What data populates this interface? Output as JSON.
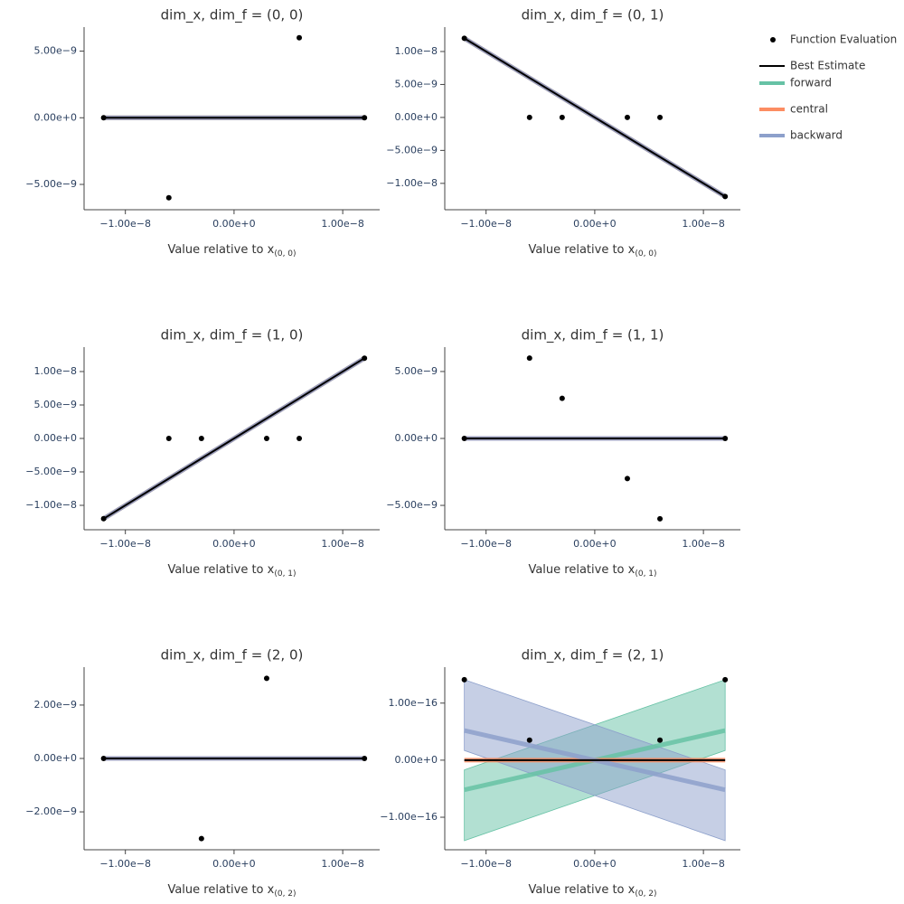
{
  "legend": [
    {
      "name": "Function Evaluation",
      "color": "#000000"
    },
    {
      "name": "Best Estimate",
      "color": "#000000"
    },
    {
      "name": "forward",
      "color": "#66c2a5"
    },
    {
      "name": "central",
      "color": "#fc8d62"
    },
    {
      "name": "backward",
      "color": "#8da0cb"
    }
  ],
  "chart_data": [
    {
      "type": "line",
      "title": "dim_x, dim_f = (0, 0)",
      "x_label": "Value relative to x",
      "x_label_subscript": "(0, 0)",
      "xlim": [
        -1.38e-08,
        1.34e-08
      ],
      "xticks": [
        {
          "value": -1e-08,
          "label": "−1.00e−8"
        },
        {
          "value": 0,
          "label": "0.00e+0"
        },
        {
          "value": 1e-08,
          "label": "1.00e−8"
        }
      ],
      "ylim": [
        -6.9e-09,
        6.8e-09
      ],
      "yticks": [
        {
          "value": 5e-09,
          "label": "5.00e−9"
        },
        {
          "value": 0,
          "label": "0.00e+0"
        },
        {
          "value": -5e-09,
          "label": "−5.00e−9"
        }
      ],
      "series": [
        {
          "x": [
            -1.2e-08,
            -6e-09,
            6e-09,
            1.2e-08
          ],
          "values": [
            0,
            -6e-09,
            6e-09,
            0
          ]
        },
        {
          "x": [
            -1.2e-08,
            1.2e-08
          ],
          "values": [
            0,
            0
          ]
        },
        {
          "x": [
            -1.2e-08,
            1.2e-08
          ],
          "values": [
            0,
            0
          ]
        },
        {
          "x": [
            -1.2e-08,
            1.2e-08
          ],
          "values": [
            0,
            0
          ]
        },
        {
          "x": [
            -1.2e-08,
            1.2e-08
          ],
          "values": [
            0,
            0
          ]
        }
      ]
    },
    {
      "type": "line",
      "title": "dim_x, dim_f = (0, 1)",
      "x_label": "Value relative to x",
      "x_label_subscript": "(0, 0)",
      "xlim": [
        -1.38e-08,
        1.34e-08
      ],
      "xticks": [
        {
          "value": -1e-08,
          "label": "−1.00e−8"
        },
        {
          "value": 0,
          "label": "0.00e+0"
        },
        {
          "value": 1e-08,
          "label": "1.00e−8"
        }
      ],
      "ylim": [
        -1.4e-08,
        1.37e-08
      ],
      "yticks": [
        {
          "value": 1e-08,
          "label": "1.00e−8"
        },
        {
          "value": 5e-09,
          "label": "5.00e−9"
        },
        {
          "value": 0,
          "label": "0.00e+0"
        },
        {
          "value": -5e-09,
          "label": "−5.00e−9"
        },
        {
          "value": -1e-08,
          "label": "−1.00e−8"
        }
      ],
      "series": [
        {
          "x": [
            -1.2e-08,
            -6e-09,
            -3e-09,
            3e-09,
            6e-09,
            1.2e-08
          ],
          "values": [
            1.2e-08,
            0,
            0,
            0,
            0,
            -1.2e-08
          ]
        },
        {
          "x": [
            -1.2e-08,
            1.2e-08
          ],
          "values": [
            1.2e-08,
            -1.2e-08
          ]
        },
        {
          "x": [
            -1.2e-08,
            1.2e-08
          ],
          "values": [
            1.2e-08,
            -1.2e-08
          ]
        },
        {
          "x": [
            -1.2e-08,
            1.2e-08
          ],
          "values": [
            1.2e-08,
            -1.2e-08
          ]
        },
        {
          "x": [
            -1.2e-08,
            1.2e-08
          ],
          "values": [
            1.2e-08,
            -1.2e-08
          ]
        }
      ]
    },
    {
      "type": "line",
      "title": "dim_x, dim_f = (1, 0)",
      "x_label": "Value relative to x",
      "x_label_subscript": "(0, 1)",
      "xlim": [
        -1.38e-08,
        1.34e-08
      ],
      "xticks": [
        {
          "value": -1e-08,
          "label": "−1.00e−8"
        },
        {
          "value": 0,
          "label": "0.00e+0"
        },
        {
          "value": 1e-08,
          "label": "1.00e−8"
        }
      ],
      "ylim": [
        -1.365e-08,
        1.365e-08
      ],
      "yticks": [
        {
          "value": 1e-08,
          "label": "1.00e−8"
        },
        {
          "value": 5e-09,
          "label": "5.00e−9"
        },
        {
          "value": 0,
          "label": "0.00e+0"
        },
        {
          "value": -5e-09,
          "label": "−5.00e−9"
        },
        {
          "value": -1e-08,
          "label": "−1.00e−8"
        }
      ],
      "series": [
        {
          "x": [
            -1.2e-08,
            -6e-09,
            -3e-09,
            3e-09,
            6e-09,
            1.2e-08
          ],
          "values": [
            -1.2e-08,
            0,
            0,
            0,
            0,
            1.2e-08
          ]
        },
        {
          "x": [
            -1.2e-08,
            1.2e-08
          ],
          "values": [
            -1.2e-08,
            1.2e-08
          ]
        },
        {
          "x": [
            -1.2e-08,
            1.2e-08
          ],
          "values": [
            -1.2e-08,
            1.2e-08
          ]
        },
        {
          "x": [
            -1.2e-08,
            1.2e-08
          ],
          "values": [
            -1.2e-08,
            1.2e-08
          ]
        },
        {
          "x": [
            -1.2e-08,
            1.2e-08
          ],
          "values": [
            -1.2e-08,
            1.2e-08
          ]
        }
      ]
    },
    {
      "type": "line",
      "title": "dim_x, dim_f = (1, 1)",
      "x_label": "Value relative to x",
      "x_label_subscript": "(0, 1)",
      "xlim": [
        -1.38e-08,
        1.34e-08
      ],
      "xticks": [
        {
          "value": -1e-08,
          "label": "−1.00e−8"
        },
        {
          "value": 0,
          "label": "0.00e+0"
        },
        {
          "value": 1e-08,
          "label": "1.00e−8"
        }
      ],
      "ylim": [
        -6.82e-09,
        6.82e-09
      ],
      "yticks": [
        {
          "value": 5e-09,
          "label": "5.00e−9"
        },
        {
          "value": 0,
          "label": "0.00e+0"
        },
        {
          "value": -5e-09,
          "label": "−5.00e−9"
        }
      ],
      "series": [
        {
          "x": [
            -1.2e-08,
            -6e-09,
            -3e-09,
            3e-09,
            6e-09,
            1.2e-08
          ],
          "values": [
            0,
            6e-09,
            3e-09,
            -3e-09,
            -6e-09,
            0
          ]
        },
        {
          "x": [
            -1.2e-08,
            1.2e-08
          ],
          "values": [
            0,
            0
          ]
        },
        {
          "x": [
            -1.2e-08,
            1.2e-08
          ],
          "values": [
            0,
            0
          ]
        },
        {
          "x": [
            -1.2e-08,
            1.2e-08
          ],
          "values": [
            0,
            0
          ]
        },
        {
          "x": [
            -1.2e-08,
            1.2e-08
          ],
          "values": [
            0,
            0
          ]
        }
      ]
    },
    {
      "type": "line",
      "title": "dim_x, dim_f = (2, 0)",
      "x_label": "Value relative to x",
      "x_label_subscript": "(0, 2)",
      "xlim": [
        -1.38e-08,
        1.34e-08
      ],
      "xticks": [
        {
          "value": -1e-08,
          "label": "−1.00e−8"
        },
        {
          "value": 0,
          "label": "0.00e+0"
        },
        {
          "value": 1e-08,
          "label": "1.00e−8"
        }
      ],
      "ylim": [
        -3.42e-09,
        3.42e-09
      ],
      "yticks": [
        {
          "value": 2e-09,
          "label": "2.00e−9"
        },
        {
          "value": 0,
          "label": "0.00e+0"
        },
        {
          "value": -2e-09,
          "label": "−2.00e−9"
        }
      ],
      "series": [
        {
          "x": [
            -1.2e-08,
            -3e-09,
            3e-09,
            1.2e-08
          ],
          "values": [
            0,
            -3e-09,
            3e-09,
            0
          ]
        },
        {
          "x": [
            -1.2e-08,
            1.2e-08
          ],
          "values": [
            0,
            0
          ]
        },
        {
          "x": [
            -1.2e-08,
            1.2e-08
          ],
          "values": [
            0,
            0
          ]
        },
        {
          "x": [
            -1.2e-08,
            1.2e-08
          ],
          "values": [
            0,
            0
          ]
        },
        {
          "x": [
            -1.2e-08,
            1.2e-08
          ],
          "values": [
            0,
            0
          ]
        }
      ]
    },
    {
      "type": "line",
      "title": "dim_x, dim_f = (2, 1)",
      "x_label": "Value relative to x",
      "x_label_subscript": "(0, 2)",
      "xlim": [
        -1.38e-08,
        1.34e-08
      ],
      "xticks": [
        {
          "value": -1e-08,
          "label": "−1.00e−8"
        },
        {
          "value": 0,
          "label": "0.00e+0"
        },
        {
          "value": 1e-08,
          "label": "1.00e−8"
        }
      ],
      "ylim": [
        -1.57e-16,
        1.63e-16
      ],
      "yticks": [
        {
          "value": 1e-16,
          "label": "1.00e−16"
        },
        {
          "value": 0,
          "label": "0.00e+0"
        },
        {
          "value": -1e-16,
          "label": "−1.00e−16"
        }
      ],
      "series": [
        {
          "x": [
            -1.2e-08,
            -6e-09,
            6e-09,
            1.2e-08
          ],
          "values": [
            1.41e-16,
            3.5e-17,
            3.5e-17,
            1.41e-16
          ]
        },
        {
          "x": [
            -1.2e-08,
            1.2e-08
          ],
          "values": [
            0,
            0
          ]
        },
        {
          "x": [
            -1.2e-08,
            1.2e-08
          ],
          "values": [
            -5.2e-17,
            5.2e-17
          ],
          "lower": [
            -1.41e-16,
            1.7e-17
          ],
          "upper": [
            -1.7e-17,
            1.41e-16
          ]
        },
        {
          "x": [
            -1.2e-08,
            1.2e-08
          ],
          "values": [
            0,
            0
          ]
        },
        {
          "x": [
            -1.2e-08,
            1.2e-08
          ],
          "values": [
            5.2e-17,
            -5.2e-17
          ],
          "lower": [
            1.7e-17,
            -1.41e-16
          ],
          "upper": [
            1.41e-16,
            -1.7e-17
          ]
        }
      ]
    }
  ]
}
